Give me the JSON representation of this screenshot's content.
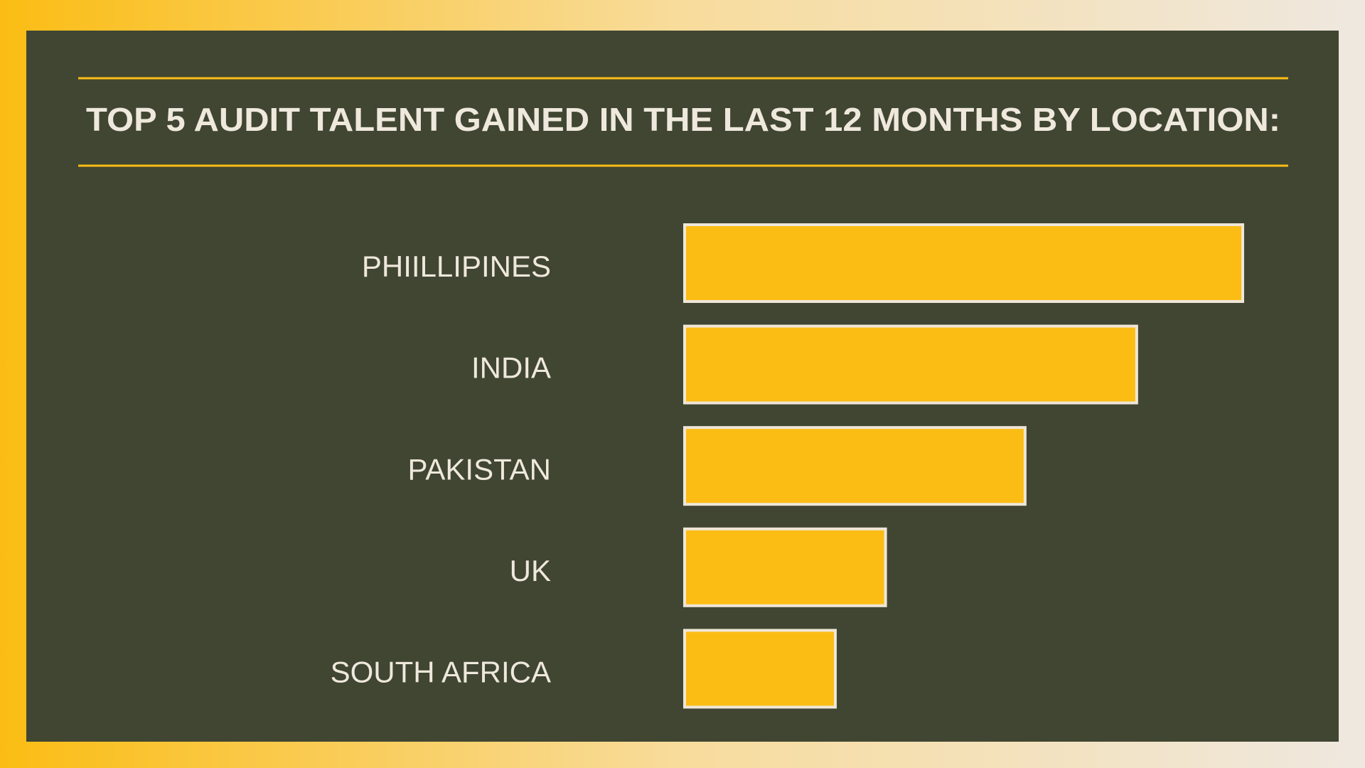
{
  "chart_data": {
    "type": "bar",
    "orientation": "horizontal",
    "title": "TOP 5 AUDIT TALENT GAINED  IN THE LAST 12 MONTHS BY LOCATION:",
    "categories": [
      "PHIILLIPINES",
      "INDIA",
      "PAKISTAN",
      "UK",
      "SOUTH AFRICA"
    ],
    "values": [
      100,
      81,
      61,
      36,
      27
    ],
    "color": "#fbbd14",
    "xlim": [
      0,
      100
    ]
  }
}
